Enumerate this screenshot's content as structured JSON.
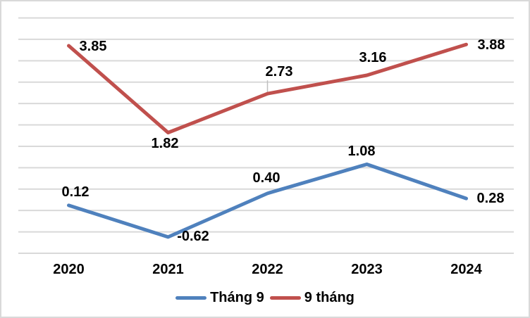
{
  "chart_data": {
    "type": "line",
    "categories": [
      "2020",
      "2021",
      "2022",
      "2023",
      "2024"
    ],
    "series": [
      {
        "name": "Tháng 9",
        "values": [
          0.12,
          -0.62,
          0.4,
          1.08,
          0.28
        ],
        "labels": [
          "0.12",
          "-0.62",
          "0.40",
          "1.08",
          "0.28"
        ],
        "color": "#4F81BD"
      },
      {
        "name": "9 tháng",
        "values": [
          3.85,
          1.82,
          2.73,
          3.16,
          3.88
        ],
        "labels": [
          "3.85",
          "1.82",
          "2.73",
          "3.16",
          "3.88"
        ],
        "color": "#C0504D"
      }
    ],
    "title": "",
    "xlabel": "",
    "ylabel": "",
    "ylim": [
      -1.0,
      4.5
    ],
    "grid_step": 0.5,
    "grid": true,
    "gridline_color": "#D9D9D9",
    "leader_line_color": "#BFBFBF",
    "data_label_color": "#000000",
    "legend_position": "bottom"
  }
}
